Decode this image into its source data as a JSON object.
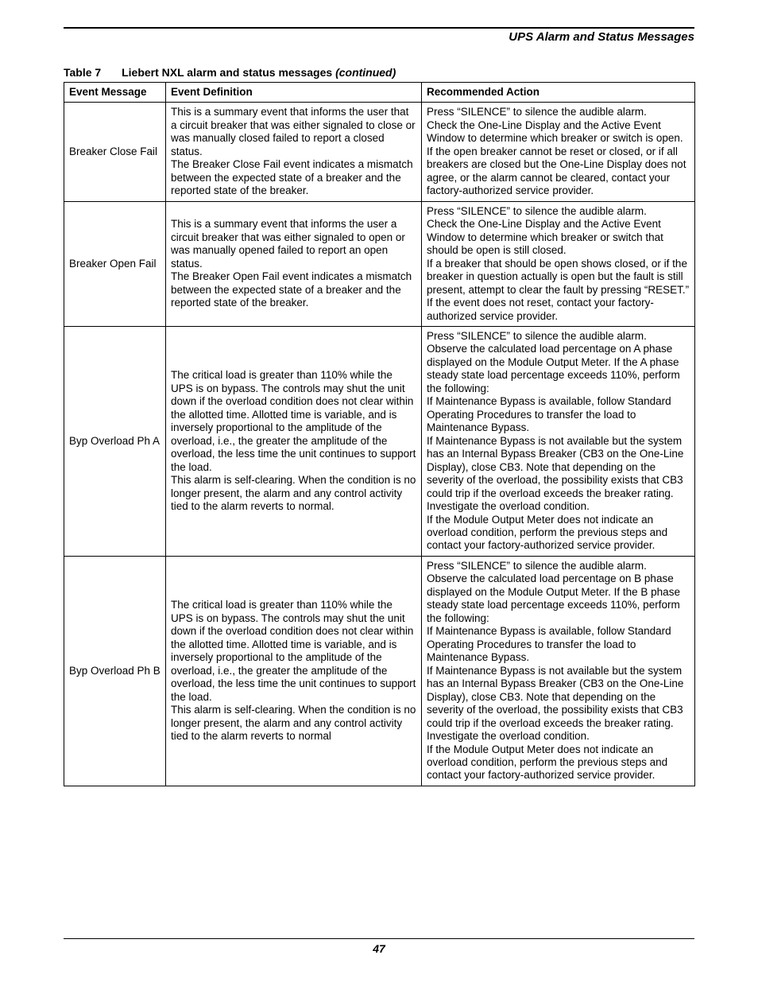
{
  "page": {
    "header_title": "UPS Alarm and Status Messages",
    "page_number": "47",
    "table": {
      "label": "Table 7",
      "title": "Liebert NXL alarm and status messages ",
      "continued": "(continued)",
      "columns": [
        "Event Message",
        "Event Definition",
        "Recommended Action"
      ],
      "rows": [
        {
          "msg": "Breaker Close Fail",
          "def": "This is a summary event that informs the user that a circuit breaker that was either signaled to close or was manually closed failed to report a closed status.\nThe Breaker Close Fail event indicates a mismatch between the expected state of a breaker and the reported state of the breaker.",
          "act": "Press “SILENCE” to silence the audible alarm.\nCheck the One-Line Display and the Active Event Window to determine which breaker or switch is open.\nIf the open breaker cannot be reset or closed, or if all breakers are closed but the One-Line Display does not agree, or the alarm cannot be cleared, contact your factory-authorized service provider."
        },
        {
          "msg": "Breaker Open Fail",
          "def": "This is a summary event that informs the user a circuit breaker that was either signaled to open or was manually opened failed to report an open status.\nThe Breaker Open Fail event indicates a mismatch between the expected state of a breaker and the reported state of the breaker.",
          "act": "Press “SILENCE” to silence the audible alarm.\nCheck the One-Line Display and the Active Event Window to determine which breaker or switch that should be open is still closed.\nIf a breaker that should be open shows closed, or if the breaker in question actually is open but the fault is still present, attempt to clear the fault by pressing “RESET.”\nIf the event does not reset, contact your factory-authorized service provider."
        },
        {
          "msg": "Byp Overload Ph A",
          "def": "The critical load is greater than 110% while the UPS is on bypass. The controls may shut the unit down if the overload condition does not clear within the allotted time. Allotted time is variable, and is inversely proportional to the amplitude of the overload, i.e., the greater the amplitude of the overload, the less time the unit continues to support the load.\nThis alarm is self-clearing. When the condition is no longer present, the alarm and any control activity tied to the alarm reverts to normal.",
          "act": "Press “SILENCE” to silence the audible alarm.\nObserve the calculated load percentage on A phase displayed on the Module Output Meter. If the A phase steady state load percentage exceeds 110%, perform the following:\nIf Maintenance Bypass is available, follow Standard Operating Procedures to transfer the load to Maintenance Bypass.\nIf Maintenance Bypass is not available but the system has an Internal Bypass Breaker (CB3 on the One-Line Display), close CB3. Note that depending on the severity of the overload, the possibility exists that CB3 could trip if the overload exceeds the breaker rating.\nInvestigate the overload condition.\nIf the Module Output Meter does not indicate an overload condition, perform the previous steps and contact your factory-authorized service provider."
        },
        {
          "msg": "Byp Overload Ph B",
          "def": "The critical load is greater than 110% while the UPS is on bypass. The controls may shut the unit down if the overload condition does not clear within the allotted time. Allotted time is variable, and is inversely proportional to the amplitude of the overload, i.e., the greater the amplitude of the overload, the less time the unit continues to support the load.\nThis alarm is self-clearing. When the condition is no longer present, the alarm and any control activity tied to the alarm reverts to normal",
          "act": "Press “SILENCE” to silence the audible alarm.\nObserve the calculated load percentage on B phase displayed on the Module Output Meter. If the B phase steady state load percentage exceeds 110%, perform the following:\nIf Maintenance Bypass is available, follow Standard Operating Procedures to transfer the load to Maintenance Bypass.\nIf Maintenance Bypass is not available but the system has an Internal Bypass Breaker (CB3 on the One-Line Display), close CB3. Note that depending on the severity of the overload, the possibility exists that CB3 could trip if the overload exceeds the breaker rating.\nInvestigate the overload condition.\nIf the Module Output Meter does not indicate an overload condition, perform the previous steps and contact your factory-authorized service provider."
        }
      ]
    }
  }
}
